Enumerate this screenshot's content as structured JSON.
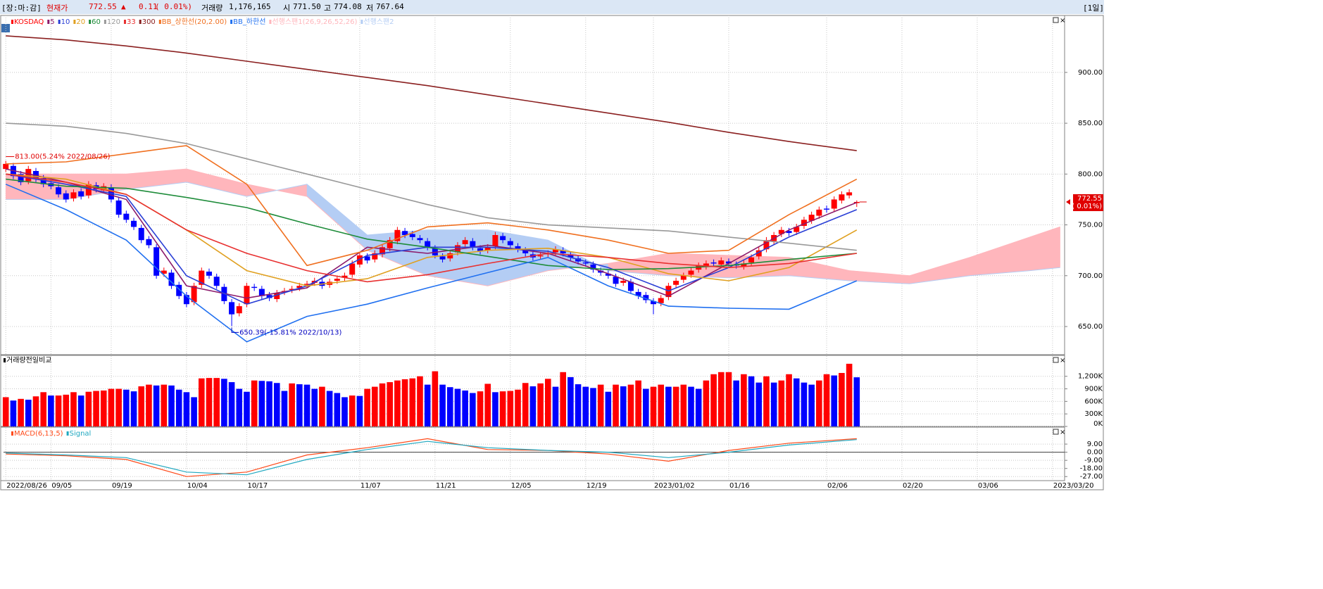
{
  "header": {
    "status": "[장:마:감]",
    "price_label": "현재가",
    "price": "772.55",
    "arrow": "▲",
    "change": "0.11",
    "change_pct": "( 0.01%)",
    "volume_label": "거래량",
    "volume": "1,176,165",
    "open_label": "시",
    "open": "771.50",
    "high_label": "고",
    "high": "774.08",
    "low_label": "저",
    "low": "767.64",
    "period": "[1일]"
  },
  "chart_data": [
    {
      "type": "candlestick",
      "name": "KOSDAQ",
      "up_color": "#ff0000",
      "down_color": "#0000ff",
      "open": [
        805,
        808,
        800,
        793,
        803,
        796,
        791,
        787,
        781,
        776,
        783,
        779,
        789,
        784,
        787,
        774,
        761,
        754,
        747,
        736,
        728,
        702,
        703,
        691,
        681,
        674,
        691,
        704,
        699,
        689,
        674,
        663,
        672,
        689,
        687,
        681,
        677,
        684,
        686,
        688,
        691,
        693,
        694,
        691,
        695,
        698,
        701,
        711,
        719,
        716,
        721,
        727,
        734,
        744,
        741,
        737,
        734,
        727,
        719,
        717,
        723,
        731,
        734,
        727,
        725,
        729,
        739,
        734,
        729,
        725,
        721,
        719,
        721,
        723,
        725,
        721,
        717,
        713,
        711,
        705,
        702,
        699,
        693,
        694,
        684,
        681,
        675,
        673,
        679,
        691,
        696,
        701,
        706,
        709,
        713,
        711,
        714,
        711,
        709,
        713,
        719,
        726,
        734,
        741,
        744,
        743,
        749,
        754,
        759,
        766,
        766,
        774,
        779,
        771.5
      ],
      "high": [
        813,
        811,
        803,
        808,
        806,
        799,
        794,
        790,
        784,
        785,
        786,
        793,
        792,
        791,
        790,
        777,
        764,
        757,
        750,
        739,
        731,
        708,
        706,
        694,
        684,
        693,
        708,
        707,
        702,
        692,
        677,
        673,
        693,
        692,
        690,
        684,
        686,
        688,
        690,
        693,
        695,
        698,
        697,
        697,
        700,
        703,
        715,
        723,
        722,
        725,
        731,
        738,
        748,
        747,
        744,
        740,
        737,
        730,
        722,
        725,
        733,
        738,
        737,
        730,
        731,
        743,
        742,
        737,
        732,
        728,
        724,
        723,
        725,
        729,
        728,
        724,
        720,
        716,
        714,
        708,
        705,
        702,
        698,
        697,
        687,
        684,
        678,
        681,
        693,
        698,
        703,
        708,
        713,
        715,
        716,
        718,
        717,
        714,
        715,
        721,
        728,
        738,
        743,
        748,
        747,
        751,
        758,
        763,
        768,
        769,
        778,
        783,
        785,
        774.08
      ],
      "low": [
        802,
        795,
        789,
        790,
        792,
        787,
        785,
        777,
        772,
        773,
        775,
        776,
        782,
        781,
        772,
        757,
        752,
        745,
        732,
        727,
        697,
        699,
        687,
        677,
        669,
        671,
        688,
        697,
        687,
        672,
        650.39,
        660,
        669,
        685,
        677,
        675,
        674,
        681,
        683,
        685,
        688,
        690,
        687,
        688,
        692,
        695,
        698,
        708,
        712,
        713,
        718,
        724,
        731,
        737,
        735,
        732,
        725,
        717,
        713,
        714,
        720,
        728,
        725,
        721,
        722,
        726,
        732,
        727,
        723,
        719,
        715,
        716,
        718,
        720,
        719,
        715,
        711,
        709,
        703,
        700,
        697,
        689,
        690,
        682,
        677,
        673,
        662,
        670,
        676,
        688,
        693,
        698,
        703,
        706,
        709,
        708,
        709,
        707,
        706,
        710,
        716,
        723,
        731,
        738,
        739,
        740,
        746,
        751,
        756,
        762,
        763,
        771,
        776,
        767.64
      ],
      "close": [
        810,
        798,
        792,
        805,
        795,
        790,
        788,
        780,
        775,
        782,
        778,
        790,
        785,
        788,
        775,
        760,
        755,
        748,
        735,
        730,
        700,
        705,
        690,
        680,
        672,
        690,
        705,
        700,
        690,
        675,
        662,
        670,
        690,
        688,
        680,
        678,
        683,
        685,
        687,
        690,
        692,
        695,
        690,
        694,
        697,
        700,
        712,
        720,
        715,
        722,
        728,
        735,
        745,
        740,
        738,
        735,
        728,
        720,
        716,
        722,
        730,
        735,
        728,
        724,
        728,
        740,
        735,
        730,
        726,
        722,
        718,
        720,
        722,
        726,
        722,
        718,
        714,
        712,
        706,
        703,
        700,
        692,
        695,
        685,
        680,
        676,
        672,
        678,
        690,
        695,
        700,
        705,
        710,
        712,
        712,
        715,
        712,
        710,
        712,
        718,
        725,
        735,
        740,
        745,
        742,
        748,
        755,
        760,
        765,
        765,
        775,
        780,
        782,
        772.55
      ],
      "xlim": [
        -0.3,
        140.6
      ],
      "xticks": [
        {
          "value": 0,
          "label": "2022/08/26"
        },
        {
          "value": 6,
          "label": "09/05"
        },
        {
          "value": 14,
          "label": "09/19"
        },
        {
          "value": 24,
          "label": "10/04"
        },
        {
          "value": 32,
          "label": "10/17"
        },
        {
          "value": 47,
          "label": "11/07"
        },
        {
          "value": 57,
          "label": "11/21"
        },
        {
          "value": 67,
          "label": "12/05"
        },
        {
          "value": 77,
          "label": "12/19"
        },
        {
          "value": 86,
          "label": "2023/01/02"
        },
        {
          "value": 96,
          "label": "01/16"
        },
        {
          "value": 109,
          "label": "02/06"
        },
        {
          "value": 119,
          "label": "02/20"
        },
        {
          "value": 129,
          "label": "03/06"
        },
        {
          "value": 139,
          "label": "2023/03/20"
        }
      ],
      "ylim": [
        623,
        956
      ],
      "yticks": [
        {
          "value": 650,
          "label": "650.00"
        },
        {
          "value": 700,
          "label": "700.00"
        },
        {
          "value": 750,
          "label": "750.00"
        },
        {
          "value": 800,
          "label": "800.00"
        },
        {
          "value": 850,
          "label": "850.00"
        },
        {
          "value": 900,
          "label": "900.00"
        }
      ],
      "grid": true,
      "lines_x": [
        0,
        8,
        16,
        24,
        32,
        40,
        48,
        56,
        64,
        72,
        80,
        88,
        96,
        104,
        113
      ],
      "series": [
        {
          "name": "5",
          "color": "#8b1a6b",
          "values": [
            805,
            792,
            775,
            690,
            678,
            688,
            728,
            722,
            730,
            722,
            702,
            680,
            712,
            745,
            772
          ]
        },
        {
          "name": "10",
          "color": "#2a3fd6",
          "values": [
            800,
            790,
            778,
            700,
            672,
            690,
            720,
            728,
            728,
            724,
            708,
            685,
            708,
            738,
            765
          ]
        },
        {
          "name": "20",
          "color": "#e0a020",
          "values": [
            800,
            795,
            780,
            745,
            705,
            690,
            697,
            718,
            725,
            727,
            718,
            702,
            695,
            708,
            745
          ]
        },
        {
          "name": "60",
          "color": "#1e8c3a",
          "values": [
            795,
            788,
            786,
            777,
            767,
            751,
            736,
            728,
            719,
            710,
            706,
            707,
            710,
            716,
            722
          ]
        },
        {
          "name": "120",
          "color": "#999999",
          "values": [
            850,
            847,
            840,
            830,
            815,
            800,
            785,
            770,
            757,
            750,
            747,
            744,
            738,
            732,
            725
          ]
        },
        {
          "name": "33",
          "color": "#e83030",
          "values": [
            800,
            792,
            780,
            745,
            722,
            705,
            694,
            701,
            712,
            722,
            718,
            712,
            708,
            712,
            722
          ]
        },
        {
          "name": "300",
          "color": "#8b2020",
          "values": [
            936,
            932,
            926,
            919,
            911,
            903,
            895,
            887,
            878,
            869,
            860,
            851,
            841,
            832,
            823
          ]
        },
        {
          "name": "BB_상한선(20,2.00)",
          "color": "#f07020",
          "values": [
            810,
            812,
            820,
            828,
            790,
            710,
            725,
            748,
            752,
            745,
            735,
            722,
            725,
            760,
            795
          ]
        },
        {
          "name": "BB_하한선",
          "color": "#2070f0",
          "values": [
            790,
            765,
            735,
            680,
            635,
            660,
            672,
            688,
            703,
            718,
            690,
            670,
            668,
            667,
            695
          ]
        }
      ],
      "cloud_x": [
        0,
        8,
        16,
        24,
        32,
        40,
        48,
        56,
        64,
        72,
        80,
        88,
        96,
        104,
        112,
        120,
        128,
        136,
        140
      ],
      "cloud": [
        {
          "name": "선행스팬1(26,9,26,52,26)",
          "color": "#ffb6bc",
          "values": [
            800,
            800,
            800,
            805,
            790,
            778,
            725,
            700,
            690,
            705,
            712,
            722,
            720,
            718,
            705,
            700,
            718,
            738,
            748
          ]
        },
        {
          "name": "선행스팬2",
          "color": "#b4cdf4",
          "values": [
            775,
            775,
            785,
            792,
            778,
            790,
            740,
            745,
            745,
            735,
            705,
            700,
            698,
            700,
            695,
            692,
            700,
            705,
            708
          ]
        }
      ],
      "annotations": [
        "813.00(5.24% 2022/08/26)",
        "650.39(-15.81% 2022/10/13)"
      ],
      "last_label": [
        "772.55",
        "( 0.01%)"
      ]
    },
    {
      "type": "bar",
      "title": "거래량전일비교",
      "up_color": "#ff0000",
      "down_color": "#0000ff",
      "values": [
        700,
        620,
        660,
        640,
        720,
        820,
        740,
        740,
        760,
        820,
        740,
        830,
        850,
        860,
        900,
        900,
        880,
        840,
        960,
        1000,
        980,
        1000,
        980,
        880,
        820,
        700,
        1150,
        1160,
        1160,
        1140,
        1060,
        900,
        830,
        1100,
        1090,
        1080,
        1040,
        850,
        1030,
        1010,
        1000,
        900,
        950,
        850,
        800,
        700,
        740,
        730,
        900,
        950,
        1030,
        1060,
        1100,
        1130,
        1150,
        1200,
        1000,
        1320,
        1000,
        940,
        900,
        860,
        800,
        840,
        1020,
        820,
        840,
        850,
        880,
        1040,
        960,
        1030,
        1140,
        950,
        1300,
        1180,
        1010,
        950,
        920,
        1000,
        830,
        1000,
        960,
        1000,
        1100,
        900,
        950,
        1000,
        950,
        950,
        1000,
        950,
        900,
        1100,
        1250,
        1300,
        1300,
        1100,
        1250,
        1200,
        1050,
        1200,
        1050,
        1100,
        1250,
        1150,
        1050,
        1000,
        1100,
        1250,
        1220,
        1280,
        1500,
        1176.165
      ],
      "ylim": [
        0,
        1684
      ],
      "yticks": [
        {
          "value": 0,
          "label": "0K"
        },
        {
          "value": 300,
          "label": "300K"
        },
        {
          "value": 600,
          "label": "600K"
        },
        {
          "value": 900,
          "label": "900K"
        },
        {
          "value": 1200,
          "label": "1,200K"
        }
      ],
      "grid": true
    },
    {
      "type": "line",
      "x": [
        0,
        8,
        16,
        24,
        32,
        40,
        48,
        56,
        64,
        72,
        80,
        88,
        96,
        104,
        113
      ],
      "series": [
        {
          "name": "MACD(6,13,5)",
          "color": "#ff4a1a",
          "values": [
            -2,
            -4,
            -8,
            -27,
            -22,
            -3,
            5,
            15,
            3,
            2,
            -2,
            -10,
            2,
            10,
            15
          ]
        },
        {
          "name": "Signal",
          "color": "#20a8c0",
          "values": [
            -1,
            -3,
            -6,
            -22,
            -25,
            -8,
            3,
            12,
            5,
            2,
            0,
            -6,
            0,
            8,
            14
          ]
        }
      ],
      "ylim": [
        -31.5,
        27
      ],
      "yticks": [
        {
          "value": -27,
          "label": "-27.00"
        },
        {
          "value": -18,
          "label": "-18.00"
        },
        {
          "value": -9,
          "label": "-9.00"
        },
        {
          "value": 0,
          "label": "0.00"
        },
        {
          "value": 9,
          "label": "9.00"
        }
      ],
      "grid": true
    }
  ]
}
